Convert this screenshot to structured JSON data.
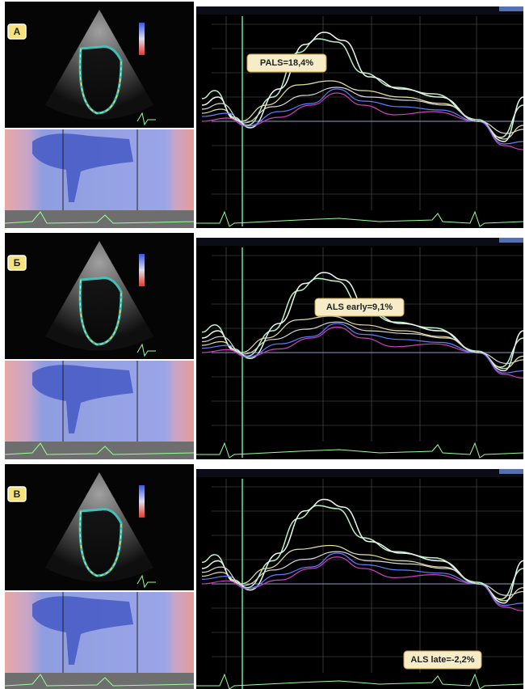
{
  "panels": [
    {
      "label": "А",
      "annotation": "PALS=18,4%"
    },
    {
      "label": "Б",
      "annotation": "ALS early=9,1%"
    },
    {
      "label": "В",
      "annotation": "ALS late=-2,2%"
    }
  ]
}
